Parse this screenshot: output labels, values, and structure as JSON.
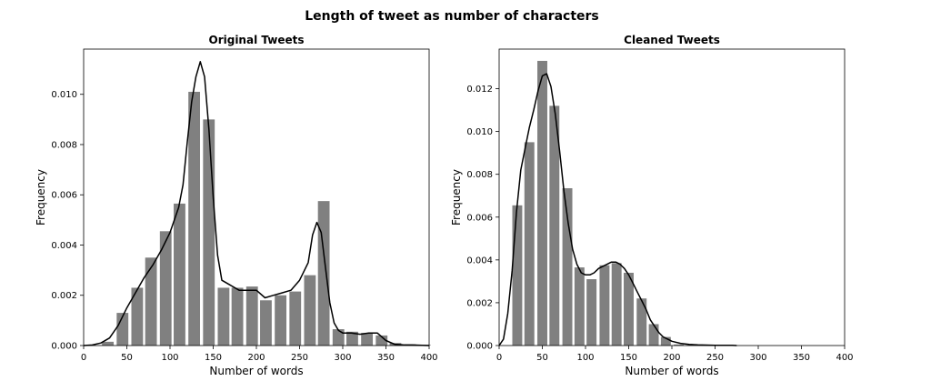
{
  "figure": {
    "suptitle": "Length of tweet as number of characters"
  },
  "colors": {
    "bar": "#808080",
    "kde": "#000000",
    "axes": "#000000",
    "background": "#ffffff"
  },
  "chart_data": [
    {
      "type": "bar",
      "title": "Original Tweets",
      "xlabel": "Number of words",
      "ylabel": "Frequency",
      "xlim": [
        0,
        400
      ],
      "ylim": [
        0,
        0.0118
      ],
      "xticks": [
        0,
        50,
        100,
        150,
        200,
        250,
        300,
        350,
        400
      ],
      "xtick_labels": [
        "0",
        "50",
        "100",
        "150",
        "200",
        "250",
        "300",
        "350",
        "400"
      ],
      "yticks": [
        0,
        0.002,
        0.004,
        0.006,
        0.008,
        0.01
      ],
      "ytick_labels": [
        "0.000",
        "0.002",
        "0.004",
        "0.006",
        "0.008",
        "0.010"
      ],
      "grid": false,
      "bar_width": 13.5,
      "bars": [
        {
          "x": 28,
          "value": 0.00015
        },
        {
          "x": 45,
          "value": 0.0013
        },
        {
          "x": 62,
          "value": 0.0023
        },
        {
          "x": 78,
          "value": 0.0035
        },
        {
          "x": 95,
          "value": 0.00455
        },
        {
          "x": 111,
          "value": 0.00565
        },
        {
          "x": 128,
          "value": 0.0101
        },
        {
          "x": 145,
          "value": 0.009
        },
        {
          "x": 162,
          "value": 0.0023
        },
        {
          "x": 178,
          "value": 0.0023
        },
        {
          "x": 195,
          "value": 0.00235
        },
        {
          "x": 211,
          "value": 0.0018
        },
        {
          "x": 228,
          "value": 0.002
        },
        {
          "x": 245,
          "value": 0.00215
        },
        {
          "x": 262,
          "value": 0.0028
        },
        {
          "x": 278,
          "value": 0.00575
        },
        {
          "x": 295,
          "value": 0.00065
        },
        {
          "x": 311,
          "value": 0.00055
        },
        {
          "x": 328,
          "value": 0.0005
        },
        {
          "x": 345,
          "value": 0.0004
        },
        {
          "x": 361,
          "value": 0.0001
        },
        {
          "x": 378,
          "value": 5e-05
        },
        {
          "x": 395,
          "value": 3e-05
        }
      ],
      "kde": {
        "x": [
          0,
          10,
          20,
          30,
          40,
          50,
          60,
          70,
          80,
          90,
          100,
          110,
          115,
          120,
          125,
          130,
          135,
          140,
          145,
          150,
          155,
          160,
          170,
          180,
          190,
          200,
          210,
          220,
          230,
          240,
          250,
          260,
          265,
          270,
          275,
          280,
          285,
          290,
          295,
          300,
          310,
          320,
          330,
          340,
          350,
          360,
          370,
          380,
          400
        ],
        "y": [
          0,
          2e-05,
          0.0001,
          0.0003,
          0.0008,
          0.0015,
          0.0021,
          0.0027,
          0.0032,
          0.0038,
          0.0045,
          0.0055,
          0.0064,
          0.0081,
          0.0097,
          0.0107,
          0.0113,
          0.0107,
          0.0086,
          0.0059,
          0.0036,
          0.0026,
          0.0024,
          0.0022,
          0.0022,
          0.0022,
          0.0019,
          0.002,
          0.0021,
          0.0022,
          0.0026,
          0.0033,
          0.0044,
          0.0049,
          0.0045,
          0.0031,
          0.0017,
          0.0009,
          0.0006,
          0.0005,
          0.0005,
          0.00045,
          0.0005,
          0.0005,
          0.0002,
          5e-05,
          3e-05,
          2e-05,
          0
        ]
      }
    },
    {
      "type": "bar",
      "title": "Cleaned Tweets",
      "xlabel": "Number of words",
      "ylabel": "Frequency",
      "xlim": [
        0,
        400
      ],
      "ylim": [
        0,
        0.01385
      ],
      "xticks": [
        0,
        50,
        100,
        150,
        200,
        250,
        300,
        350,
        400
      ],
      "xtick_labels": [
        "0",
        "50",
        "100",
        "150",
        "200",
        "250",
        "300",
        "350",
        "400"
      ],
      "yticks": [
        0,
        0.002,
        0.004,
        0.006,
        0.008,
        0.01,
        0.012
      ],
      "ytick_labels": [
        "0.000",
        "0.002",
        "0.004",
        "0.006",
        "0.008",
        "0.010",
        "0.012"
      ],
      "grid": false,
      "bar_width": 11.5,
      "bars": [
        {
          "x": 21,
          "value": 0.00655
        },
        {
          "x": 35,
          "value": 0.0095
        },
        {
          "x": 50,
          "value": 0.0133
        },
        {
          "x": 64,
          "value": 0.0112
        },
        {
          "x": 79,
          "value": 0.00735
        },
        {
          "x": 93,
          "value": 0.00365
        },
        {
          "x": 107,
          "value": 0.0031
        },
        {
          "x": 122,
          "value": 0.00375
        },
        {
          "x": 136,
          "value": 0.00385
        },
        {
          "x": 150,
          "value": 0.0034
        },
        {
          "x": 165,
          "value": 0.0022
        },
        {
          "x": 179,
          "value": 0.001
        },
        {
          "x": 193,
          "value": 0.0004
        },
        {
          "x": 208,
          "value": 5e-05
        },
        {
          "x": 222,
          "value": 2e-05
        },
        {
          "x": 236,
          "value": 1e-05
        },
        {
          "x": 251,
          "value": 1e-05
        },
        {
          "x": 265,
          "value": 1e-05
        }
      ],
      "kde": {
        "x": [
          0,
          5,
          10,
          15,
          20,
          25,
          30,
          35,
          40,
          45,
          50,
          55,
          60,
          65,
          70,
          75,
          80,
          85,
          90,
          95,
          100,
          105,
          110,
          115,
          120,
          125,
          130,
          135,
          140,
          145,
          150,
          155,
          160,
          165,
          170,
          175,
          180,
          185,
          190,
          195,
          200,
          210,
          220,
          230,
          240,
          250,
          260,
          270,
          275
        ],
        "y": [
          0,
          0.0003,
          0.0015,
          0.0035,
          0.0062,
          0.0082,
          0.0092,
          0.0102,
          0.011,
          0.0119,
          0.0126,
          0.0127,
          0.0121,
          0.0108,
          0.0091,
          0.0072,
          0.0057,
          0.0045,
          0.0038,
          0.0034,
          0.0033,
          0.0033,
          0.0034,
          0.0036,
          0.0037,
          0.0038,
          0.0039,
          0.0039,
          0.0038,
          0.0036,
          0.0033,
          0.0029,
          0.0025,
          0.0021,
          0.0017,
          0.0012,
          0.0009,
          0.0006,
          0.0004,
          0.0003,
          0.0002,
          0.0001,
          5e-05,
          3e-05,
          2e-05,
          1e-05,
          1e-05,
          1e-05,
          0
        ]
      }
    }
  ]
}
